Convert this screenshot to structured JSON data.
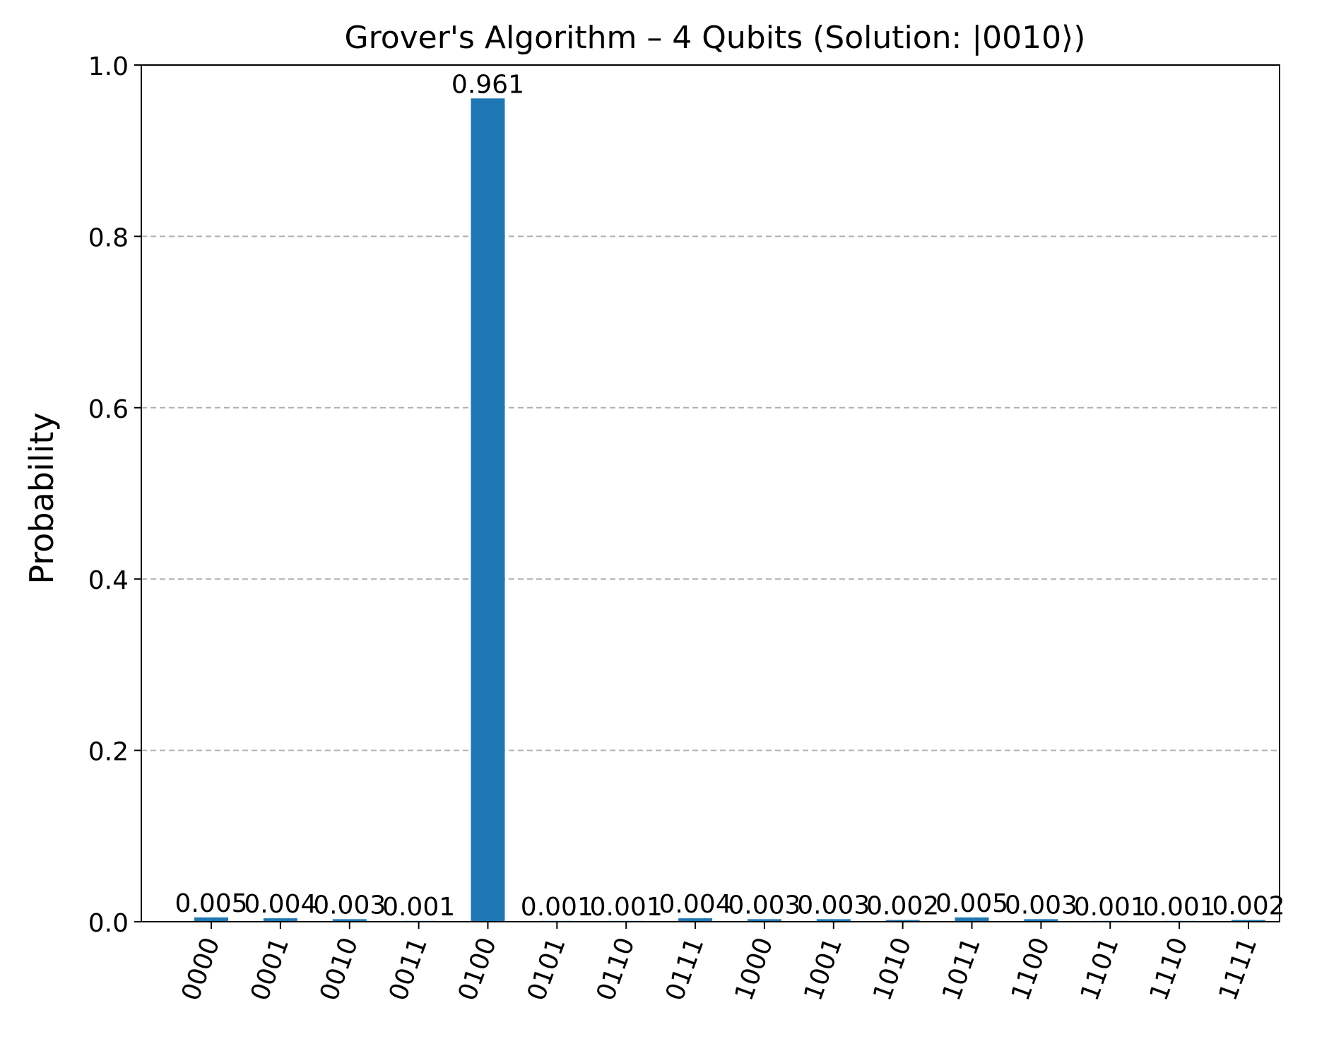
{
  "chart_data": {
    "type": "bar",
    "title": "Grover's Algorithm – 4 Qubits (Solution: |0010⟩)",
    "xlabel": "",
    "ylabel": "Probability",
    "ylim": [
      0,
      1.0
    ],
    "yticks": [
      "0.0",
      "0.2",
      "0.4",
      "0.6",
      "0.8",
      "1.0"
    ],
    "grid": "y-axis dashed",
    "categories": [
      "0000",
      "0001",
      "0010",
      "0011",
      "0100",
      "0101",
      "0110",
      "0111",
      "1000",
      "1001",
      "1010",
      "1011",
      "1100",
      "1101",
      "1110",
      "1111"
    ],
    "values": [
      0.005,
      0.004,
      0.003,
      0.001,
      0.961,
      0.001,
      0.001,
      0.004,
      0.003,
      0.003,
      0.002,
      0.005,
      0.003,
      0.001,
      0.001,
      0.002
    ],
    "data_labels": [
      "0.005",
      "0.004",
      "0.003",
      "0.001",
      "0.961",
      "0.001",
      "0.001",
      "0.004",
      "0.003",
      "0.003",
      "0.002",
      "0.005",
      "0.003",
      "0.001",
      "0.001",
      "0.002"
    ],
    "colors": {
      "bar": "#1f77b4",
      "grid": "#b0b0b0",
      "axis": "#000000"
    }
  }
}
